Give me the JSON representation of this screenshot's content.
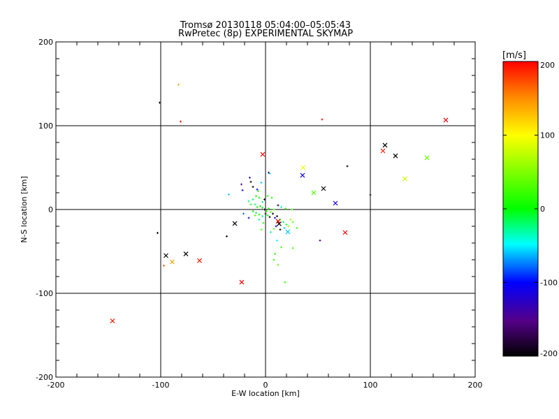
{
  "chart_data": {
    "type": "scatter",
    "title": "Tromsø 20130118 05:04:00–05:05:43",
    "subtitle": "RwPretec (8p) EXPERIMENTAL SKYMAP",
    "xlabel": "E-W location [km]",
    "ylabel": "N-S location [km]",
    "xlim": [
      -200,
      200
    ],
    "ylim": [
      -200,
      200
    ],
    "xticks": [
      -200,
      -100,
      0,
      100,
      200
    ],
    "yticks": [
      -200,
      -100,
      0,
      100,
      200
    ],
    "grid": "every 100 km",
    "colorbar": {
      "label": "[m/s]",
      "range": [
        -200,
        200
      ],
      "ticks": [
        200,
        100,
        0,
        -100,
        -200
      ],
      "placement": "right"
    },
    "cross_markers": [
      [
        -2.7,
        65.8,
        200
      ],
      [
        35.8,
        50,
        90
      ],
      [
        35.3,
        40.8,
        -110
      ],
      [
        46,
        20,
        30
      ],
      [
        55.3,
        25,
        -200
      ],
      [
        66.7,
        7.5,
        -110
      ],
      [
        76,
        -27.5,
        200
      ],
      [
        21.3,
        -26.7,
        -60
      ],
      [
        12,
        -14,
        200
      ],
      [
        13,
        -17,
        -200
      ],
      [
        -29.3,
        -16.7,
        -200
      ],
      [
        112,
        70,
        190
      ],
      [
        114,
        76.7,
        -200
      ],
      [
        124,
        64,
        -200
      ],
      [
        133,
        36.7,
        80
      ],
      [
        154,
        61.7,
        40
      ],
      [
        172,
        106.7,
        200
      ],
      [
        -63,
        -61,
        190
      ],
      [
        -76,
        -53,
        -200
      ],
      [
        -95,
        -55,
        -200
      ],
      [
        -89,
        -62.5,
        140
      ],
      [
        -22.7,
        -86.7,
        200
      ],
      [
        -146,
        -133,
        190
      ]
    ],
    "point_markers": [
      [
        -83,
        149,
        140
      ],
      [
        -101,
        127.5,
        -200
      ],
      [
        -81,
        105,
        200
      ],
      [
        54,
        107.5,
        200
      ],
      [
        78,
        51.7,
        -200
      ],
      [
        100,
        17.5,
        -200
      ],
      [
        -103,
        -28,
        -200
      ],
      [
        -37,
        -32,
        -200
      ],
      [
        52,
        -37,
        -150
      ],
      [
        18.7,
        -86.7,
        20
      ],
      [
        -97,
        -67,
        170
      ],
      [
        -15,
        38,
        -110
      ],
      [
        -14,
        33,
        -200
      ],
      [
        -23,
        30,
        -150
      ],
      [
        -22,
        23,
        -110
      ],
      [
        -8,
        24,
        -110
      ],
      [
        -4,
        32,
        -60
      ],
      [
        -35,
        18,
        -60
      ],
      [
        -12,
        27,
        -200
      ],
      [
        3,
        44,
        -170
      ],
      [
        4,
        43,
        -60
      ],
      [
        -7,
        22,
        10
      ],
      [
        -9,
        16,
        10
      ],
      [
        -12,
        12,
        -20
      ],
      [
        -6,
        14,
        0
      ],
      [
        -3,
        9,
        -30
      ],
      [
        -1,
        12,
        -200
      ],
      [
        2,
        16,
        10
      ],
      [
        6,
        14,
        10
      ],
      [
        -16,
        10,
        -30
      ],
      [
        -14,
        6,
        20
      ],
      [
        -10,
        6,
        -30
      ],
      [
        -8,
        3,
        10
      ],
      [
        -5,
        4,
        0
      ],
      [
        -3,
        2,
        -10
      ],
      [
        -1,
        0,
        -200
      ],
      [
        1,
        -2,
        10
      ],
      [
        3,
        1,
        0
      ],
      [
        5,
        -3,
        40
      ],
      [
        -12,
        -2,
        0
      ],
      [
        -9,
        -4,
        -20
      ],
      [
        -6,
        -6,
        10
      ],
      [
        -3,
        -8,
        -30
      ],
      [
        0,
        -5,
        -200
      ],
      [
        2,
        -7,
        0
      ],
      [
        4,
        -9,
        -200
      ],
      [
        7,
        -5,
        -200
      ],
      [
        9,
        -10,
        -120
      ],
      [
        11,
        -8,
        -200
      ],
      [
        14,
        -12,
        10
      ],
      [
        17,
        -15,
        -20
      ],
      [
        20,
        -18,
        -10
      ],
      [
        22,
        -20,
        60
      ],
      [
        18,
        -22,
        -60
      ],
      [
        14,
        -24,
        -200
      ],
      [
        10,
        -20,
        -100
      ],
      [
        8,
        -23,
        40
      ],
      [
        5,
        -27,
        -30
      ],
      [
        -2,
        -16,
        20
      ],
      [
        -6,
        -12,
        -30
      ],
      [
        -10,
        -7,
        30
      ],
      [
        -16,
        -10,
        -100
      ],
      [
        -21,
        -5,
        -80
      ],
      [
        8,
        0,
        20
      ],
      [
        12,
        5,
        -200
      ],
      [
        15,
        3,
        -40
      ],
      [
        19,
        1,
        20
      ],
      [
        25,
        0,
        20
      ],
      [
        -4,
        -24,
        30
      ],
      [
        24,
        -12,
        60
      ],
      [
        26,
        -15,
        30
      ],
      [
        30,
        -22,
        20
      ],
      [
        11,
        -37,
        -50
      ],
      [
        15,
        -45,
        30
      ],
      [
        9,
        -53,
        20
      ],
      [
        8,
        -60,
        20
      ],
      [
        12,
        -66,
        40
      ],
      [
        26,
        -46,
        30
      ]
    ]
  }
}
